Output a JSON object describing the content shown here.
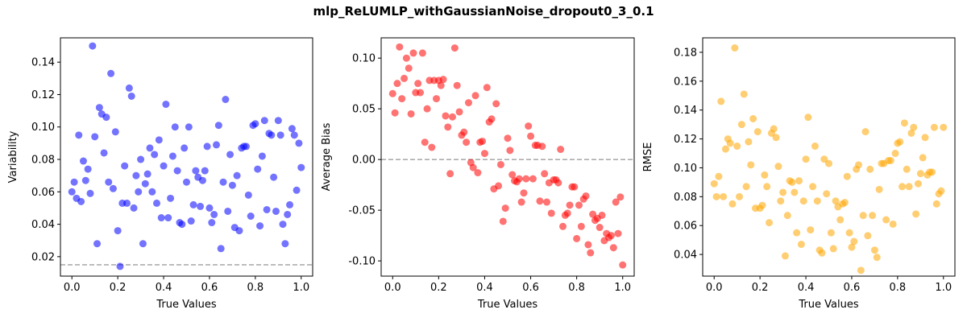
{
  "suptitle": "mlp_ReLUMLP_withGaussianNoise_dropout0_3_0.1",
  "chart_data": [
    {
      "type": "scatter",
      "xlabel": "True Values",
      "ylabel": "Variability",
      "color": "#0000ff",
      "xlim": [
        -0.05,
        1.05
      ],
      "ylim": [
        0.008,
        0.155
      ],
      "xticks": [
        "0.0",
        "0.2",
        "0.4",
        "0.6",
        "0.8",
        "1.0"
      ],
      "yticks": [
        "0.02",
        "0.04",
        "0.06",
        "0.08",
        "0.10",
        "0.12",
        "0.14"
      ],
      "reference_line": 0.015,
      "points": [
        [
          0.0,
          0.06
        ],
        [
          0.01,
          0.066
        ],
        [
          0.02,
          0.056
        ],
        [
          0.03,
          0.095
        ],
        [
          0.04,
          0.054
        ],
        [
          0.05,
          0.079
        ],
        [
          0.06,
          0.067
        ],
        [
          0.07,
          0.074
        ],
        [
          0.08,
          0.059
        ],
        [
          0.09,
          0.15
        ],
        [
          0.1,
          0.094
        ],
        [
          0.11,
          0.028
        ],
        [
          0.12,
          0.112
        ],
        [
          0.13,
          0.108
        ],
        [
          0.14,
          0.084
        ],
        [
          0.15,
          0.106
        ],
        [
          0.16,
          0.066
        ],
        [
          0.17,
          0.133
        ],
        [
          0.18,
          0.062
        ],
        [
          0.19,
          0.097
        ],
        [
          0.2,
          0.036
        ],
        [
          0.21,
          0.014
        ],
        [
          0.22,
          0.053
        ],
        [
          0.23,
          0.076
        ],
        [
          0.24,
          0.053
        ],
        [
          0.25,
          0.124
        ],
        [
          0.26,
          0.119
        ],
        [
          0.27,
          0.05
        ],
        [
          0.28,
          0.07
        ],
        [
          0.29,
          0.06
        ],
        [
          0.3,
          0.08
        ],
        [
          0.31,
          0.028
        ],
        [
          0.32,
          0.065
        ],
        [
          0.33,
          0.071
        ],
        [
          0.34,
          0.087
        ],
        [
          0.35,
          0.06
        ],
        [
          0.36,
          0.083
        ],
        [
          0.37,
          0.053
        ],
        [
          0.38,
          0.092
        ],
        [
          0.39,
          0.044
        ],
        [
          0.4,
          0.076
        ],
        [
          0.41,
          0.114
        ],
        [
          0.42,
          0.044
        ],
        [
          0.43,
          0.056
        ],
        [
          0.44,
          0.082
        ],
        [
          0.45,
          0.1
        ],
        [
          0.46,
          0.073
        ],
        [
          0.47,
          0.041
        ],
        [
          0.48,
          0.04
        ],
        [
          0.49,
          0.087
        ],
        [
          0.5,
          0.066
        ],
        [
          0.51,
          0.1
        ],
        [
          0.52,
          0.042
        ],
        [
          0.53,
          0.052
        ],
        [
          0.54,
          0.073
        ],
        [
          0.55,
          0.069
        ],
        [
          0.56,
          0.051
        ],
        [
          0.57,
          0.067
        ],
        [
          0.58,
          0.073
        ],
        [
          0.59,
          0.088
        ],
        [
          0.6,
          0.05
        ],
        [
          0.61,
          0.041
        ],
        [
          0.62,
          0.046
        ],
        [
          0.63,
          0.089
        ],
        [
          0.64,
          0.101
        ],
        [
          0.65,
          0.025
        ],
        [
          0.66,
          0.066
        ],
        [
          0.67,
          0.117
        ],
        [
          0.68,
          0.048
        ],
        [
          0.69,
          0.083
        ],
        [
          0.7,
          0.064
        ],
        [
          0.71,
          0.038
        ],
        [
          0.72,
          0.07
        ],
        [
          0.73,
          0.036
        ],
        [
          0.74,
          0.087
        ],
        [
          0.75,
          0.088
        ],
        [
          0.76,
          0.088
        ],
        [
          0.77,
          0.058
        ],
        [
          0.78,
          0.045
        ],
        [
          0.79,
          0.101
        ],
        [
          0.8,
          0.102
        ],
        [
          0.81,
          0.074
        ],
        [
          0.82,
          0.039
        ],
        [
          0.83,
          0.082
        ],
        [
          0.84,
          0.104
        ],
        [
          0.85,
          0.049
        ],
        [
          0.86,
          0.096
        ],
        [
          0.87,
          0.095
        ],
        [
          0.88,
          0.069
        ],
        [
          0.89,
          0.048
        ],
        [
          0.9,
          0.104
        ],
        [
          0.91,
          0.095
        ],
        [
          0.92,
          0.04
        ],
        [
          0.93,
          0.028
        ],
        [
          0.94,
          0.046
        ],
        [
          0.95,
          0.052
        ],
        [
          0.96,
          0.099
        ],
        [
          0.97,
          0.095
        ],
        [
          0.98,
          0.061
        ],
        [
          0.99,
          0.09
        ],
        [
          1.0,
          0.075
        ]
      ]
    },
    {
      "type": "scatter",
      "xlabel": "True Values",
      "ylabel": "Average Bias",
      "color": "#ff0000",
      "xlim": [
        -0.05,
        1.05
      ],
      "ylim": [
        -0.115,
        0.12
      ],
      "xticks": [
        "0.0",
        "0.2",
        "0.4",
        "0.6",
        "0.8",
        "1.0"
      ],
      "yticks": [
        "-0.10",
        "-0.05",
        "0.00",
        "0.05",
        "0.10"
      ],
      "reference_line": 0.0,
      "points": [
        [
          0.0,
          0.065
        ],
        [
          0.01,
          0.046
        ],
        [
          0.02,
          0.075
        ],
        [
          0.03,
          0.111
        ],
        [
          0.04,
          0.06
        ],
        [
          0.05,
          0.08
        ],
        [
          0.06,
          0.1
        ],
        [
          0.07,
          0.09
        ],
        [
          0.08,
          0.045
        ],
        [
          0.09,
          0.105
        ],
        [
          0.1,
          0.066
        ],
        [
          0.11,
          0.075
        ],
        [
          0.12,
          0.066
        ],
        [
          0.13,
          0.105
        ],
        [
          0.14,
          0.017
        ],
        [
          0.15,
          0.05
        ],
        [
          0.16,
          0.078
        ],
        [
          0.17,
          0.012
        ],
        [
          0.18,
          0.078
        ],
        [
          0.19,
          0.06
        ],
        [
          0.2,
          0.078
        ],
        [
          0.21,
          0.073
        ],
        [
          0.22,
          0.079
        ],
        [
          0.23,
          0.043
        ],
        [
          0.24,
          0.032
        ],
        [
          0.25,
          -0.014
        ],
        [
          0.26,
          0.042
        ],
        [
          0.27,
          0.11
        ],
        [
          0.28,
          0.073
        ],
        [
          0.29,
          0.047
        ],
        [
          0.3,
          0.024
        ],
        [
          0.31,
          0.027
        ],
        [
          0.32,
          0.017
        ],
        [
          0.33,
          0.056
        ],
        [
          0.34,
          -0.003
        ],
        [
          0.35,
          -0.008
        ],
        [
          0.36,
          0.063
        ],
        [
          0.37,
          -0.013
        ],
        [
          0.38,
          0.017
        ],
        [
          0.39,
          0.018
        ],
        [
          0.4,
          0.006
        ],
        [
          0.41,
          0.071
        ],
        [
          0.42,
          0.037
        ],
        [
          0.43,
          0.04
        ],
        [
          0.44,
          -0.029
        ],
        [
          0.45,
          0.055
        ],
        [
          0.46,
          -0.026
        ],
        [
          0.47,
          -0.005
        ],
        [
          0.48,
          -0.061
        ],
        [
          0.49,
          -0.048
        ],
        [
          0.5,
          0.021
        ],
        [
          0.51,
          0.009
        ],
        [
          0.52,
          -0.015
        ],
        [
          0.53,
          -0.021
        ],
        [
          0.54,
          -0.022
        ],
        [
          0.55,
          -0.019
        ],
        [
          0.56,
          -0.042
        ],
        [
          0.57,
          -0.033
        ],
        [
          0.58,
          -0.019
        ],
        [
          0.59,
          0.033
        ],
        [
          0.6,
          0.023
        ],
        [
          0.61,
          -0.019
        ],
        [
          0.62,
          0.014
        ],
        [
          0.63,
          0.014
        ],
        [
          0.64,
          -0.041
        ],
        [
          0.65,
          0.013
        ],
        [
          0.66,
          -0.014
        ],
        [
          0.67,
          -0.042
        ],
        [
          0.68,
          -0.023
        ],
        [
          0.69,
          -0.053
        ],
        [
          0.7,
          -0.02
        ],
        [
          0.71,
          -0.02
        ],
        [
          0.72,
          -0.023
        ],
        [
          0.73,
          0.01
        ],
        [
          0.74,
          -0.066
        ],
        [
          0.75,
          -0.055
        ],
        [
          0.76,
          -0.053
        ],
        [
          0.77,
          -0.045
        ],
        [
          0.78,
          -0.027
        ],
        [
          0.79,
          -0.027
        ],
        [
          0.8,
          -0.078
        ],
        [
          0.81,
          -0.045
        ],
        [
          0.82,
          -0.066
        ],
        [
          0.83,
          -0.039
        ],
        [
          0.84,
          -0.036
        ],
        [
          0.85,
          -0.084
        ],
        [
          0.86,
          -0.092
        ],
        [
          0.87,
          -0.054
        ],
        [
          0.88,
          -0.06
        ],
        [
          0.89,
          -0.058
        ],
        [
          0.9,
          -0.067
        ],
        [
          0.91,
          -0.055
        ],
        [
          0.92,
          -0.08
        ],
        [
          0.93,
          -0.073
        ],
        [
          0.94,
          -0.077
        ],
        [
          0.95,
          -0.075
        ],
        [
          0.96,
          -0.087
        ],
        [
          0.97,
          -0.042
        ],
        [
          0.98,
          -0.073
        ],
        [
          0.99,
          -0.037
        ],
        [
          1.0,
          -0.104
        ]
      ]
    },
    {
      "type": "scatter",
      "xlabel": "True Values",
      "ylabel": "RMSE",
      "color": "#ffa500",
      "xlim": [
        -0.05,
        1.05
      ],
      "ylim": [
        0.025,
        0.19
      ],
      "xticks": [
        "0.0",
        "0.2",
        "0.4",
        "0.6",
        "0.8",
        "1.0"
      ],
      "yticks": [
        "0.04",
        "0.06",
        "0.08",
        "0.10",
        "0.12",
        "0.14",
        "0.16",
        "0.18"
      ],
      "reference_line": null,
      "points": [
        [
          0.0,
          0.089
        ],
        [
          0.01,
          0.08
        ],
        [
          0.02,
          0.094
        ],
        [
          0.03,
          0.146
        ],
        [
          0.04,
          0.08
        ],
        [
          0.05,
          0.113
        ],
        [
          0.06,
          0.12
        ],
        [
          0.07,
          0.117
        ],
        [
          0.08,
          0.075
        ],
        [
          0.09,
          0.183
        ],
        [
          0.1,
          0.115
        ],
        [
          0.11,
          0.08
        ],
        [
          0.12,
          0.13
        ],
        [
          0.13,
          0.151
        ],
        [
          0.14,
          0.087
        ],
        [
          0.15,
          0.118
        ],
        [
          0.16,
          0.102
        ],
        [
          0.17,
          0.134
        ],
        [
          0.18,
          0.072
        ],
        [
          0.19,
          0.125
        ],
        [
          0.2,
          0.072
        ],
        [
          0.21,
          0.074
        ],
        [
          0.22,
          0.095
        ],
        [
          0.23,
          0.087
        ],
        [
          0.24,
          0.062
        ],
        [
          0.25,
          0.124
        ],
        [
          0.26,
          0.127
        ],
        [
          0.27,
          0.121
        ],
        [
          0.28,
          0.101
        ],
        [
          0.29,
          0.077
        ],
        [
          0.3,
          0.083
        ],
        [
          0.31,
          0.039
        ],
        [
          0.32,
          0.067
        ],
        [
          0.33,
          0.091
        ],
        [
          0.34,
          0.09
        ],
        [
          0.35,
          0.083
        ],
        [
          0.36,
          0.055
        ],
        [
          0.37,
          0.091
        ],
        [
          0.38,
          0.047
        ],
        [
          0.39,
          0.077
        ],
        [
          0.4,
          0.106
        ],
        [
          0.41,
          0.135
        ],
        [
          0.42,
          0.057
        ],
        [
          0.43,
          0.087
        ],
        [
          0.44,
          0.115
        ],
        [
          0.45,
          0.077
        ],
        [
          0.46,
          0.043
        ],
        [
          0.47,
          0.041
        ],
        [
          0.48,
          0.106
        ],
        [
          0.49,
          0.082
        ],
        [
          0.5,
          0.103
        ],
        [
          0.51,
          0.055
        ],
        [
          0.52,
          0.044
        ],
        [
          0.53,
          0.077
        ],
        [
          0.54,
          0.073
        ],
        [
          0.55,
          0.064
        ],
        [
          0.56,
          0.075
        ],
        [
          0.57,
          0.076
        ],
        [
          0.58,
          0.094
        ],
        [
          0.59,
          0.055
        ],
        [
          0.6,
          0.045
        ],
        [
          0.61,
          0.049
        ],
        [
          0.62,
          0.099
        ],
        [
          0.63,
          0.102
        ],
        [
          0.64,
          0.029
        ],
        [
          0.65,
          0.067
        ],
        [
          0.66,
          0.125
        ],
        [
          0.67,
          0.053
        ],
        [
          0.68,
          0.099
        ],
        [
          0.69,
          0.067
        ],
        [
          0.7,
          0.043
        ],
        [
          0.71,
          0.038
        ],
        [
          0.72,
          0.085
        ],
        [
          0.73,
          0.103
        ],
        [
          0.74,
          0.103
        ],
        [
          0.75,
          0.064
        ],
        [
          0.76,
          0.105
        ],
        [
          0.77,
          0.105
        ],
        [
          0.78,
          0.061
        ],
        [
          0.79,
          0.11
        ],
        [
          0.8,
          0.117
        ],
        [
          0.81,
          0.118
        ],
        [
          0.82,
          0.087
        ],
        [
          0.83,
          0.131
        ],
        [
          0.84,
          0.099
        ],
        [
          0.85,
          0.087
        ],
        [
          0.86,
          0.124
        ],
        [
          0.87,
          0.128
        ],
        [
          0.88,
          0.068
        ],
        [
          0.89,
          0.089
        ],
        [
          0.9,
          0.096
        ],
        [
          0.91,
          0.107
        ],
        [
          0.92,
          0.121
        ],
        [
          0.93,
          0.095
        ],
        [
          0.94,
          0.097
        ],
        [
          0.95,
          0.097
        ],
        [
          0.96,
          0.128
        ],
        [
          0.97,
          0.075
        ],
        [
          0.98,
          0.082
        ],
        [
          0.99,
          0.084
        ],
        [
          1.0,
          0.128
        ]
      ]
    }
  ]
}
